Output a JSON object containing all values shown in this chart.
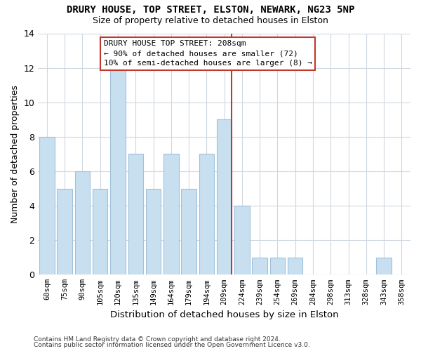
{
  "title": "DRURY HOUSE, TOP STREET, ELSTON, NEWARK, NG23 5NP",
  "subtitle": "Size of property relative to detached houses in Elston",
  "xlabel": "Distribution of detached houses by size in Elston",
  "ylabel": "Number of detached properties",
  "bin_labels": [
    "60sqm",
    "75sqm",
    "90sqm",
    "105sqm",
    "120sqm",
    "135sqm",
    "149sqm",
    "164sqm",
    "179sqm",
    "194sqm",
    "209sqm",
    "224sqm",
    "239sqm",
    "254sqm",
    "269sqm",
    "284sqm",
    "298sqm",
    "313sqm",
    "328sqm",
    "343sqm",
    "358sqm"
  ],
  "counts": [
    8,
    5,
    6,
    5,
    12,
    7,
    5,
    7,
    5,
    7,
    9,
    4,
    1,
    1,
    1,
    0,
    0,
    0,
    0,
    1,
    0
  ],
  "bar_color": "#c8dff0",
  "bar_edge_color": "#a0c0dc",
  "reference_line_x_label": "209sqm",
  "reference_line_color": "#c0392b",
  "annotation_title": "DRURY HOUSE TOP STREET: 208sqm",
  "annotation_line1": "← 90% of detached houses are smaller (72)",
  "annotation_line2": "10% of semi-detached houses are larger (8) →",
  "annotation_box_edge_color": "#c0392b",
  "ylim": [
    0,
    14
  ],
  "yticks": [
    0,
    2,
    4,
    6,
    8,
    10,
    12,
    14
  ],
  "footer1": "Contains HM Land Registry data © Crown copyright and database right 2024.",
  "footer2": "Contains public sector information licensed under the Open Government Licence v3.0.",
  "background_color": "#ffffff",
  "plot_bg_color": "#ffffff",
  "grid_color": "#d0d8e0"
}
